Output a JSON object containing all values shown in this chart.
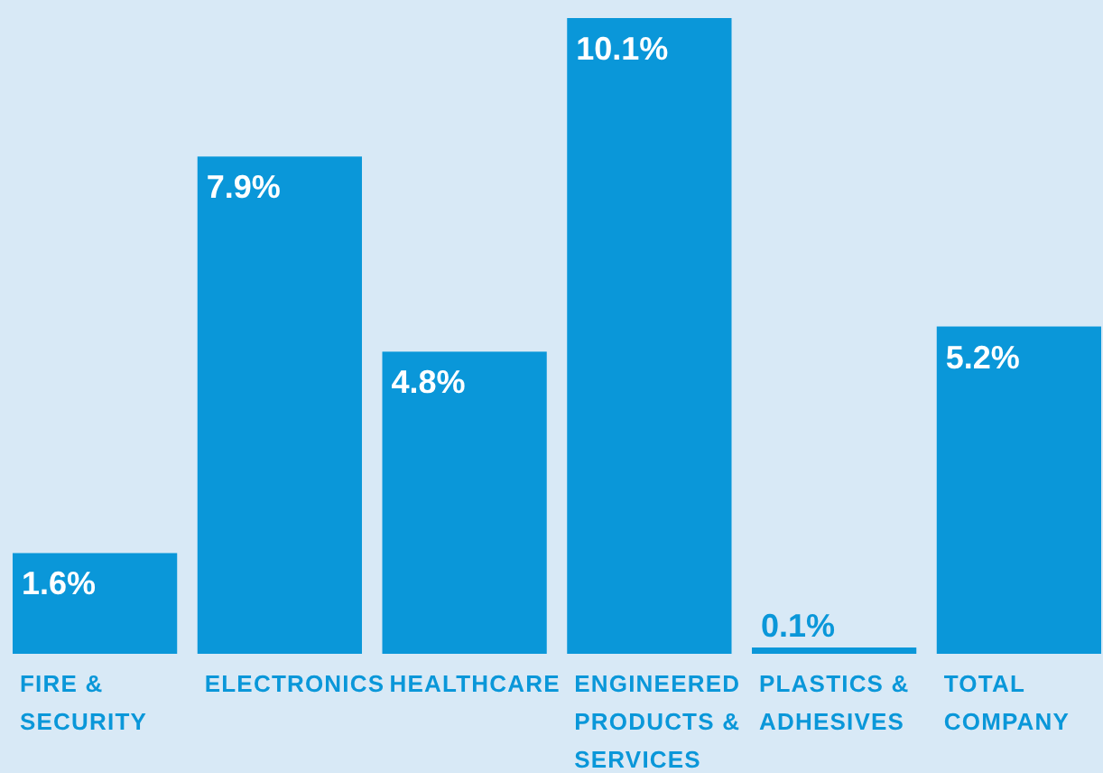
{
  "chart_data": {
    "type": "bar",
    "categories": [
      "FIRE & SECURITY",
      "ELECTRONICS",
      "HEALTHCARE",
      "ENGINEERED PRODUCTS & SERVICES",
      "PLASTICS & ADHESIVES",
      "TOTAL COMPANY"
    ],
    "values": [
      1.6,
      7.9,
      4.8,
      10.1,
      0.1,
      5.2
    ],
    "value_labels": [
      "1.6%",
      "7.9%",
      "4.8%",
      "10.1%",
      "0.1%",
      "5.2%"
    ],
    "color": "#0a97d9"
  }
}
